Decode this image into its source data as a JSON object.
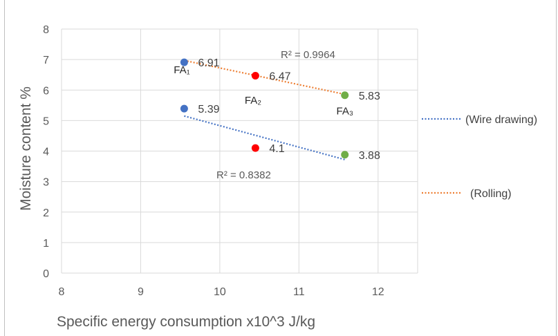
{
  "chart_data": {
    "type": "scatter",
    "xlabel": "Specific energy consumption x10^3 J/kg",
    "ylabel": "Moisture content %",
    "xlim": [
      8,
      12.5
    ],
    "ylim": [
      0,
      8
    ],
    "x_ticks": [
      "8",
      "9",
      "10",
      "11",
      "12"
    ],
    "y_ticks": [
      "0",
      "1",
      "2",
      "3",
      "4",
      "5",
      "6",
      "7",
      "8"
    ],
    "grid": "vertical and horizontal major gridlines",
    "points": [
      {
        "x": 9.55,
        "y": 6.91,
        "label": "6.91",
        "color": "#4472c4",
        "series": "rolling"
      },
      {
        "x": 10.45,
        "y": 6.47,
        "label": "6.47",
        "color": "#ff0000",
        "series": "rolling"
      },
      {
        "x": 11.58,
        "y": 5.83,
        "label": "5.83",
        "color": "#70ad47",
        "series": "rolling"
      },
      {
        "x": 9.55,
        "y": 5.39,
        "label": "5.39",
        "color": "#4472c4",
        "series": "wire"
      },
      {
        "x": 10.45,
        "y": 4.1,
        "label": "4.1",
        "color": "#ff0000",
        "series": "wire"
      },
      {
        "x": 11.58,
        "y": 3.88,
        "label": "3.88",
        "color": "#70ad47",
        "series": "wire"
      }
    ],
    "trendlines": [
      {
        "name": "(Wire drawing)",
        "color": "#4472c4",
        "from": [
          9.55,
          5.15
        ],
        "to": [
          11.58,
          3.72
        ],
        "r2": "R² = 0.8382"
      },
      {
        "name": "(Rolling)",
        "color": "#ed7d31",
        "from": [
          9.55,
          6.97
        ],
        "to": [
          11.58,
          5.86
        ],
        "r2": "R² = 0.9964"
      }
    ],
    "annotations": [
      {
        "text": "FA₁",
        "x": 9.52,
        "y": 6.55
      },
      {
        "text": "FA₂",
        "x": 10.42,
        "y": 5.55
      },
      {
        "text": "FA₃",
        "x": 11.58,
        "y": 5.2
      }
    ],
    "legend_position": "right"
  }
}
